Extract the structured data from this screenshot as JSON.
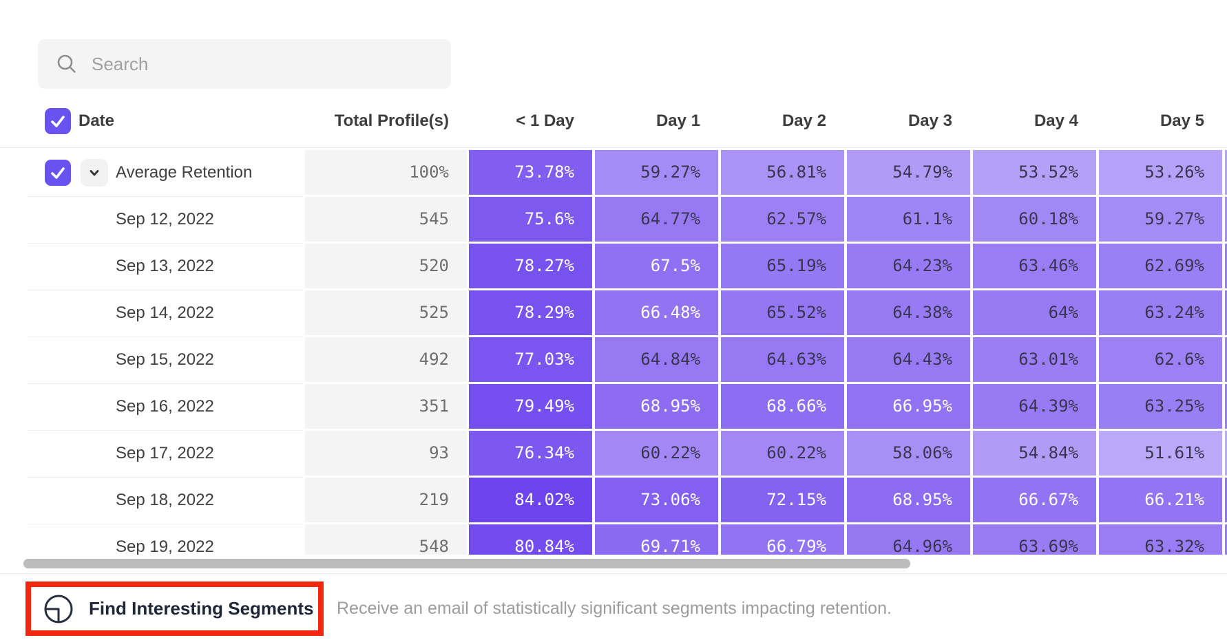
{
  "search": {
    "placeholder": "Search"
  },
  "table": {
    "columns": [
      "Date",
      "Total Profile(s)",
      "< 1 Day",
      "Day 1",
      "Day 2",
      "Day 3",
      "Day 4",
      "Day 5"
    ],
    "rows": [
      {
        "label": "Average Retention",
        "is_average": true,
        "total": "100%",
        "values": [
          "73.78%",
          "59.27%",
          "56.81%",
          "54.79%",
          "53.52%",
          "53.26%"
        ]
      },
      {
        "label": "Sep 12, 2022",
        "total": "545",
        "values": [
          "75.6%",
          "64.77%",
          "62.57%",
          "61.1%",
          "60.18%",
          "59.27%"
        ]
      },
      {
        "label": "Sep 13, 2022",
        "total": "520",
        "values": [
          "78.27%",
          "67.5%",
          "65.19%",
          "64.23%",
          "63.46%",
          "62.69%"
        ]
      },
      {
        "label": "Sep 14, 2022",
        "total": "525",
        "values": [
          "78.29%",
          "66.48%",
          "65.52%",
          "64.38%",
          "64%",
          "63.24%"
        ]
      },
      {
        "label": "Sep 15, 2022",
        "total": "492",
        "values": [
          "77.03%",
          "64.84%",
          "64.63%",
          "64.43%",
          "63.01%",
          "62.6%"
        ]
      },
      {
        "label": "Sep 16, 2022",
        "total": "351",
        "values": [
          "79.49%",
          "68.95%",
          "68.66%",
          "66.95%",
          "64.39%",
          "63.25%"
        ]
      },
      {
        "label": "Sep 17, 2022",
        "total": "93",
        "values": [
          "76.34%",
          "60.22%",
          "60.22%",
          "58.06%",
          "54.84%",
          "51.61%"
        ]
      },
      {
        "label": "Sep 18, 2022",
        "total": "219",
        "values": [
          "84.02%",
          "73.06%",
          "72.15%",
          "68.95%",
          "66.67%",
          "66.21%"
        ]
      },
      {
        "label": "Sep 19, 2022",
        "total": "548",
        "values": [
          "80.84%",
          "69.71%",
          "66.79%",
          "64.96%",
          "63.69%",
          "63.32%"
        ]
      }
    ]
  },
  "colors": {
    "accent": "#6852f0",
    "heat_low": "#c3b2fa",
    "heat_high": "#6a40ed",
    "cell_text_dark": "#3a3550",
    "cell_text_light": "#ffffff",
    "annotation_red": "#f5270f"
  },
  "footer": {
    "button_label": "Find Interesting Segments",
    "description": "Receive an email of statistically significant segments impacting retention."
  }
}
